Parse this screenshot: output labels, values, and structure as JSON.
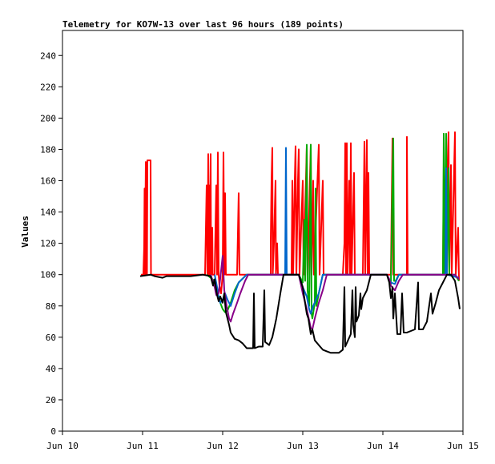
{
  "chart_data": {
    "type": "line",
    "title": "Telemetry for KO7W-13 over last 96 hours (189 points)",
    "xlabel": "",
    "ylabel": "Values",
    "x_ticks": [
      "Jun 10",
      "Jun 11",
      "Jun 12",
      "Jun 13",
      "Jun 14",
      "Jun 15"
    ],
    "xlim": [
      0,
      5
    ],
    "y_ticks": [
      "0",
      "20",
      "40",
      "60",
      "80",
      "100",
      "120",
      "140",
      "160",
      "180",
      "200",
      "220",
      "240"
    ],
    "ylim": [
      0,
      256
    ],
    "grid": false,
    "legend": "none",
    "colors": {
      "background": "#ffffff",
      "axis": "#000000",
      "red": "#ff0000",
      "green": "#00aa00",
      "blue": "#0066cc",
      "purple": "#880088",
      "black": "#000000"
    },
    "series": [
      {
        "color": "#ff0000",
        "width": 2,
        "points": [
          [
            0.98,
            100
          ],
          [
            1.01,
            100
          ],
          [
            1.02,
            118
          ],
          [
            1.025,
            155
          ],
          [
            1.03,
            100
          ],
          [
            1.04,
            172
          ],
          [
            1.045,
            100
          ],
          [
            1.05,
            155
          ],
          [
            1.055,
            100
          ],
          [
            1.06,
            173
          ],
          [
            1.1,
            173
          ],
          [
            1.105,
            100
          ],
          [
            1.2,
            100
          ],
          [
            1.4,
            100
          ],
          [
            1.6,
            100
          ],
          [
            1.78,
            100
          ],
          [
            1.8,
            157
          ],
          [
            1.81,
            100
          ],
          [
            1.82,
            177
          ],
          [
            1.825,
            100
          ],
          [
            1.83,
            157
          ],
          [
            1.835,
            100
          ],
          [
            1.85,
            177
          ],
          [
            1.855,
            100
          ],
          [
            1.87,
            130
          ],
          [
            1.875,
            100
          ],
          [
            1.9,
            100
          ],
          [
            1.92,
            157
          ],
          [
            1.93,
            100
          ],
          [
            1.94,
            178
          ],
          [
            1.95,
            100
          ],
          [
            1.96,
            93
          ],
          [
            1.98,
            88
          ],
          [
            2.0,
            100
          ],
          [
            2.01,
            178
          ],
          [
            2.02,
            100
          ],
          [
            2.03,
            152
          ],
          [
            2.04,
            100
          ],
          [
            2.1,
            100
          ],
          [
            2.18,
            100
          ],
          [
            2.2,
            152
          ],
          [
            2.21,
            100
          ],
          [
            2.3,
            100
          ],
          [
            2.6,
            100
          ],
          [
            2.6,
            120
          ],
          [
            2.61,
            160
          ],
          [
            2.62,
            181
          ],
          [
            2.625,
            100
          ],
          [
            2.64,
            120
          ],
          [
            2.66,
            160
          ],
          [
            2.665,
            100
          ],
          [
            2.68,
            120
          ],
          [
            2.69,
            100
          ],
          [
            2.86,
            100
          ],
          [
            2.87,
            160
          ],
          [
            2.88,
            100
          ],
          [
            2.9,
            160
          ],
          [
            2.91,
            182
          ],
          [
            2.92,
            100
          ],
          [
            2.94,
            160
          ],
          [
            2.95,
            180
          ],
          [
            2.96,
            100
          ],
          [
            3.0,
            160
          ],
          [
            3.01,
            100
          ],
          [
            3.05,
            182
          ],
          [
            3.06,
            100
          ],
          [
            3.1,
            183
          ],
          [
            3.11,
            100
          ],
          [
            3.13,
            160
          ],
          [
            3.14,
            100
          ],
          [
            3.2,
            183
          ],
          [
            3.21,
            100
          ],
          [
            3.25,
            160
          ],
          [
            3.26,
            100
          ],
          [
            3.5,
            100
          ],
          [
            3.52,
            120
          ],
          [
            3.53,
            184
          ],
          [
            3.54,
            100
          ],
          [
            3.55,
            184
          ],
          [
            3.56,
            100
          ],
          [
            3.58,
            160
          ],
          [
            3.59,
            100
          ],
          [
            3.6,
            184
          ],
          [
            3.61,
            100
          ],
          [
            3.64,
            165
          ],
          [
            3.65,
            100
          ],
          [
            3.75,
            100
          ],
          [
            3.77,
            185
          ],
          [
            3.78,
            100
          ],
          [
            3.8,
            186
          ],
          [
            3.81,
            100
          ],
          [
            3.82,
            165
          ],
          [
            3.83,
            100
          ],
          [
            4.1,
            100
          ],
          [
            4.12,
            187
          ],
          [
            4.13,
            100
          ],
          [
            4.3,
            100
          ],
          [
            4.3,
            188
          ],
          [
            4.31,
            100
          ],
          [
            4.5,
            100
          ],
          [
            4.75,
            100
          ],
          [
            4.76,
            170
          ],
          [
            4.77,
            100
          ],
          [
            4.82,
            191
          ],
          [
            4.83,
            100
          ],
          [
            4.85,
            170
          ],
          [
            4.86,
            100
          ],
          [
            4.9,
            191
          ],
          [
            4.91,
            100
          ],
          [
            4.94,
            130
          ],
          [
            4.95,
            96
          ]
        ]
      },
      {
        "color": "#00aa00",
        "width": 2,
        "points": [
          [
            1.8,
            100
          ],
          [
            1.9,
            96
          ],
          [
            1.93,
            90
          ],
          [
            1.97,
            82
          ],
          [
            2.0,
            78
          ],
          [
            2.03,
            76
          ],
          [
            2.06,
            77
          ],
          [
            2.1,
            82
          ],
          [
            2.15,
            90
          ],
          [
            2.2,
            95
          ],
          [
            2.3,
            100
          ],
          [
            2.95,
            100
          ],
          [
            3.0,
            95
          ],
          [
            3.02,
            135
          ],
          [
            3.03,
            96
          ],
          [
            3.05,
            183
          ],
          [
            3.06,
            90
          ],
          [
            3.08,
            80
          ],
          [
            3.1,
            183
          ],
          [
            3.11,
            75
          ],
          [
            3.12,
            72
          ],
          [
            3.15,
            82
          ],
          [
            3.16,
            155
          ],
          [
            3.17,
            80
          ],
          [
            3.2,
            88
          ],
          [
            3.25,
            100
          ],
          [
            3.4,
            100
          ],
          [
            3.9,
            100
          ],
          [
            4.05,
            100
          ],
          [
            4.08,
            96
          ],
          [
            4.1,
            94
          ],
          [
            4.12,
            160
          ],
          [
            4.13,
            187
          ],
          [
            4.14,
            96
          ],
          [
            4.16,
            96
          ],
          [
            4.2,
            100
          ],
          [
            4.5,
            100
          ],
          [
            4.7,
            100
          ],
          [
            4.75,
            100
          ],
          [
            4.76,
            190
          ],
          [
            4.77,
            100
          ],
          [
            4.79,
            190
          ],
          [
            4.8,
            100
          ],
          [
            4.82,
            168
          ],
          [
            4.83,
            100
          ],
          [
            4.88,
            100
          ],
          [
            4.9,
            100
          ],
          [
            4.95,
            96
          ]
        ]
      },
      {
        "color": "#0066cc",
        "width": 2,
        "points": [
          [
            1.9,
            100
          ],
          [
            1.93,
            92
          ],
          [
            1.95,
            85
          ],
          [
            1.97,
            82
          ],
          [
            2.0,
            84
          ],
          [
            2.03,
            88
          ],
          [
            2.06,
            84
          ],
          [
            2.1,
            80
          ],
          [
            2.15,
            88
          ],
          [
            2.2,
            95
          ],
          [
            2.3,
            100
          ],
          [
            2.78,
            100
          ],
          [
            2.79,
            181
          ],
          [
            2.8,
            100
          ],
          [
            2.95,
            100
          ],
          [
            3.0,
            92
          ],
          [
            3.05,
            86
          ],
          [
            3.08,
            78
          ],
          [
            3.1,
            75
          ],
          [
            3.13,
            80
          ],
          [
            3.2,
            88
          ],
          [
            3.25,
            100
          ],
          [
            4.05,
            100
          ],
          [
            4.1,
            95
          ],
          [
            4.15,
            94
          ],
          [
            4.2,
            100
          ],
          [
            4.7,
            100
          ],
          [
            4.78,
            100
          ],
          [
            4.79,
            168
          ],
          [
            4.8,
            100
          ],
          [
            4.95,
            98
          ]
        ]
      },
      {
        "color": "#880088",
        "width": 2,
        "points": [
          [
            1.85,
            100
          ],
          [
            1.9,
            92
          ],
          [
            1.92,
            87
          ],
          [
            1.95,
            88
          ],
          [
            2.0,
            112
          ],
          [
            2.02,
            90
          ],
          [
            2.05,
            80
          ],
          [
            2.08,
            72
          ],
          [
            2.1,
            70
          ],
          [
            2.13,
            75
          ],
          [
            2.18,
            82
          ],
          [
            2.22,
            88
          ],
          [
            2.28,
            96
          ],
          [
            2.32,
            100
          ],
          [
            2.95,
            100
          ],
          [
            3.0,
            88
          ],
          [
            3.05,
            78
          ],
          [
            3.1,
            66
          ],
          [
            3.12,
            65
          ],
          [
            3.15,
            72
          ],
          [
            3.2,
            82
          ],
          [
            3.25,
            90
          ],
          [
            3.3,
            100
          ],
          [
            3.35,
            100
          ],
          [
            4.05,
            100
          ],
          [
            4.08,
            97
          ],
          [
            4.1,
            93
          ],
          [
            4.15,
            90
          ],
          [
            4.2,
            96
          ],
          [
            4.25,
            100
          ],
          [
            4.9,
            100
          ],
          [
            4.95,
            97
          ]
        ]
      },
      {
        "color": "#000000",
        "width": 2,
        "points": [
          [
            0.97,
            99
          ],
          [
            1.1,
            100
          ],
          [
            1.15,
            99
          ],
          [
            1.25,
            98
          ],
          [
            1.3,
            99
          ],
          [
            1.4,
            99
          ],
          [
            1.5,
            99
          ],
          [
            1.6,
            99
          ],
          [
            1.75,
            100
          ],
          [
            1.85,
            99
          ],
          [
            1.88,
            93
          ],
          [
            1.9,
            97
          ],
          [
            1.93,
            87
          ],
          [
            1.95,
            83
          ],
          [
            1.97,
            86
          ],
          [
            2.0,
            82
          ],
          [
            2.02,
            88
          ],
          [
            2.04,
            76
          ],
          [
            2.06,
            72
          ],
          [
            2.08,
            68
          ],
          [
            2.1,
            63
          ],
          [
            2.15,
            59
          ],
          [
            2.2,
            58
          ],
          [
            2.25,
            56
          ],
          [
            2.3,
            53
          ],
          [
            2.35,
            53
          ],
          [
            2.38,
            53
          ],
          [
            2.39,
            88
          ],
          [
            2.4,
            53
          ],
          [
            2.45,
            54
          ],
          [
            2.5,
            54
          ],
          [
            2.52,
            90
          ],
          [
            2.53,
            57
          ],
          [
            2.58,
            55
          ],
          [
            2.62,
            60
          ],
          [
            2.67,
            72
          ],
          [
            2.72,
            88
          ],
          [
            2.76,
            100
          ],
          [
            2.95,
            100
          ],
          [
            3.0,
            92
          ],
          [
            3.02,
            85
          ],
          [
            3.05,
            75
          ],
          [
            3.07,
            72
          ],
          [
            3.1,
            62
          ],
          [
            3.12,
            65
          ],
          [
            3.15,
            58
          ],
          [
            3.2,
            55
          ],
          [
            3.25,
            52
          ],
          [
            3.3,
            51
          ],
          [
            3.35,
            50
          ],
          [
            3.4,
            50
          ],
          [
            3.45,
            50
          ],
          [
            3.5,
            52
          ],
          [
            3.52,
            92
          ],
          [
            3.53,
            54
          ],
          [
            3.6,
            62
          ],
          [
            3.62,
            90
          ],
          [
            3.63,
            68
          ],
          [
            3.65,
            60
          ],
          [
            3.66,
            92
          ],
          [
            3.67,
            70
          ],
          [
            3.7,
            74
          ],
          [
            3.72,
            88
          ],
          [
            3.73,
            78
          ],
          [
            3.75,
            85
          ],
          [
            3.8,
            90
          ],
          [
            3.85,
            100
          ],
          [
            4.05,
            100
          ],
          [
            4.08,
            95
          ],
          [
            4.1,
            85
          ],
          [
            4.12,
            92
          ],
          [
            4.13,
            72
          ],
          [
            4.15,
            88
          ],
          [
            4.18,
            62
          ],
          [
            4.22,
            62
          ],
          [
            4.24,
            88
          ],
          [
            4.26,
            63
          ],
          [
            4.3,
            63
          ],
          [
            4.35,
            64
          ],
          [
            4.4,
            65
          ],
          [
            4.44,
            95
          ],
          [
            4.45,
            65
          ],
          [
            4.5,
            65
          ],
          [
            4.55,
            70
          ],
          [
            4.6,
            88
          ],
          [
            4.62,
            75
          ],
          [
            4.66,
            82
          ],
          [
            4.7,
            90
          ],
          [
            4.75,
            95
          ],
          [
            4.8,
            100
          ],
          [
            4.85,
            100
          ],
          [
            4.9,
            96
          ],
          [
            4.94,
            85
          ],
          [
            4.96,
            78
          ]
        ]
      }
    ]
  }
}
